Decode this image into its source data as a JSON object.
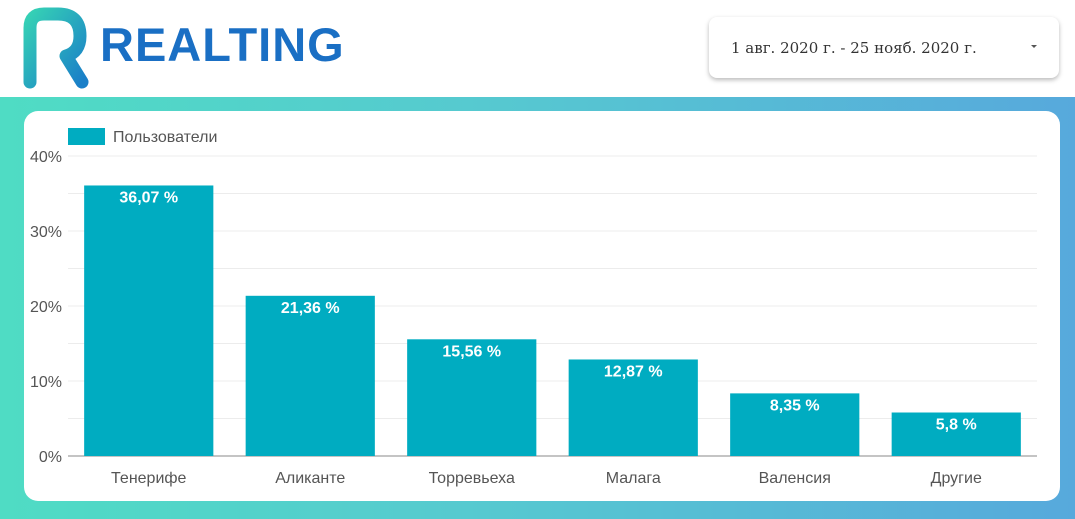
{
  "header": {
    "logo_text": "REALTING",
    "date_range": "1 авг. 2020 г. - 25 нояб. 2020 г."
  },
  "colors": {
    "bar": "#00acc1",
    "brand": "#1a6fc4",
    "gradient_start": "#4fdcc4",
    "gradient_end": "#57a9dc"
  },
  "icons": {
    "date_dropdown": "caret-down-icon",
    "logo": "realting-logo-icon"
  },
  "chart_data": {
    "type": "bar",
    "categories": [
      "Тенерифе",
      "Аликанте",
      "Торревьеха",
      "Малага",
      "Валенсия",
      "Другие"
    ],
    "series": [
      {
        "name": "Пользователи",
        "values": [
          36.07,
          21.36,
          15.56,
          12.87,
          8.35,
          5.8
        ],
        "labels": [
          "36,07 %",
          "21,36 %",
          "15,56 %",
          "12,87 %",
          "8,35 %",
          "5,8 %"
        ]
      }
    ],
    "ylim": [
      0,
      40
    ],
    "yticks": [
      0,
      10,
      20,
      30,
      40
    ],
    "ytick_labels": [
      "0%",
      "10%",
      "20%",
      "30%",
      "40%"
    ],
    "grid": true,
    "legend_position": "top-left"
  }
}
